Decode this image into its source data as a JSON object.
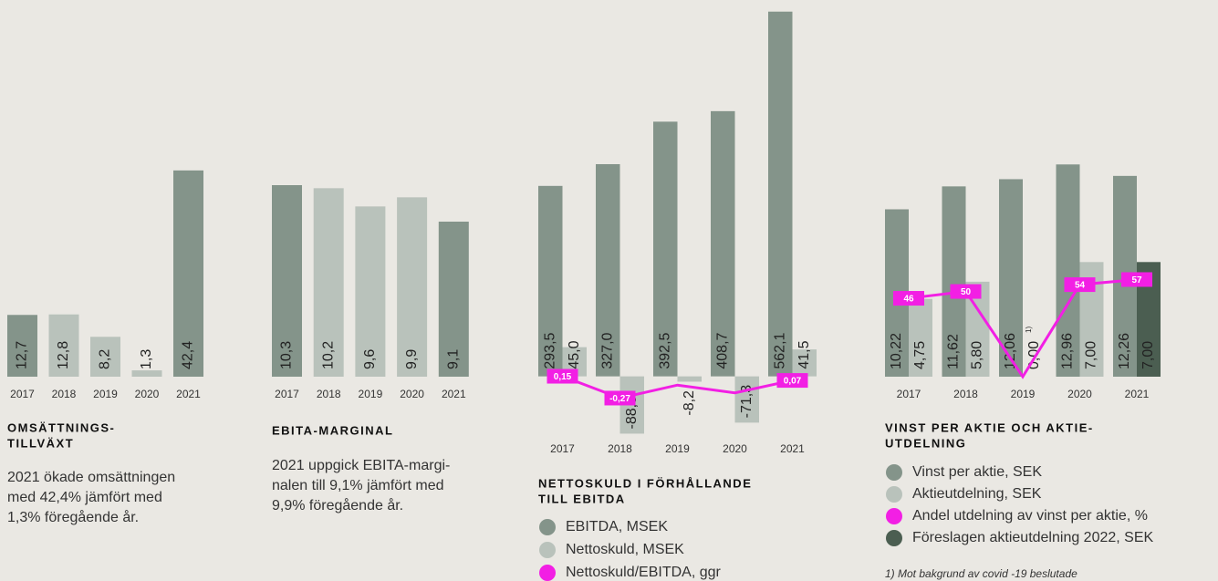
{
  "chart_data": [
    {
      "type": "bar",
      "title": [
        "OMSÄTTNINGS-",
        "TILLVÄXT"
      ],
      "description": [
        "2021 ökade omsättningen",
        "med 42,4% jämfört med",
        "1,3% föregående år."
      ],
      "categories": [
        "2017",
        "2018",
        "2019",
        "2020",
        "2021"
      ],
      "series": [
        {
          "values": [
            12.7,
            12.8,
            8.2,
            1.3,
            42.4
          ],
          "value_labels": [
            "12,7",
            "12,8",
            "8,2",
            "1,3",
            "42,4"
          ],
          "colors": [
            "#84948a",
            "#b9c2bb",
            "#b9c2bb",
            "#b9c2bb",
            "#84948a"
          ]
        }
      ],
      "ylim": [
        0,
        75
      ]
    },
    {
      "type": "bar",
      "title": [
        "EBITA-MARGINAL"
      ],
      "description": [
        "2021 uppgick EBITA-margi-",
        "nalen till 9,1% jämfört med",
        "9,9% föregående år."
      ],
      "categories": [
        "2017",
        "2018",
        "2019",
        "2020",
        "2021"
      ],
      "series": [
        {
          "values": [
            10.3,
            10.2,
            9.6,
            9.9,
            9.1
          ],
          "value_labels": [
            "10,3",
            "10,2",
            "9,6",
            "9,9",
            "9,1"
          ],
          "colors": [
            "#84948a",
            "#b9c2bb",
            "#b9c2bb",
            "#b9c2bb",
            "#84948a"
          ]
        }
      ],
      "ylim": [
        4,
        16
      ]
    },
    {
      "type": "combo",
      "title": [
        "NETTOSKULD I FÖRHÅLLANDE",
        "TILL EBITDA"
      ],
      "categories": [
        "2017",
        "2018",
        "2019",
        "2020",
        "2021"
      ],
      "series": [
        {
          "name": "EBITDA, MSEK",
          "color": "#84948a",
          "values": [
            293.5,
            327.0,
            392.5,
            408.7,
            562.1
          ],
          "value_labels": [
            "293,5",
            "327,0",
            "392,5",
            "408,7",
            "562,1"
          ]
        },
        {
          "name": "Nettoskuld, MSEK",
          "color": "#b9c2bb",
          "values": [
            45.0,
            -88.3,
            -8.2,
            -71.3,
            41.5
          ],
          "value_labels": [
            "45,0",
            "-88,3",
            "-8,2",
            "-71,3",
            "41,5"
          ]
        },
        {
          "name": "Nettoskuld/EBITDA, ggr",
          "color": "#f21fe4",
          "kind": "line",
          "axis": "y2",
          "values": [
            0.15,
            -0.27,
            -0.02,
            -0.17,
            0.07
          ],
          "value_labels": [
            "0,15",
            "-0,27",
            null,
            null,
            "0,07"
          ]
        }
      ],
      "ylim": [
        -120,
        580
      ],
      "y2lim": [
        -1.35,
        7.39
      ]
    },
    {
      "type": "combo",
      "title": [
        "VINST PER AKTIE OCH AKTIE-",
        "UTDELNING"
      ],
      "footnote": "1) Mot bakgrund av covid -19 beslutade",
      "footnote_mark": "1)",
      "categories": [
        "2017",
        "2018",
        "2019",
        "2020",
        "2021"
      ],
      "series": [
        {
          "name": "Vinst per aktie, SEK",
          "color": "#84948a",
          "values": [
            10.22,
            11.62,
            12.06,
            12.96,
            12.26
          ],
          "value_labels": [
            "10,22",
            "11,62",
            "12,06",
            "12,96",
            "12,26"
          ]
        },
        {
          "name": "Aktieutdelning, SEK",
          "color": "#b9c2bb",
          "values": [
            4.75,
            5.8,
            0.0,
            7.0,
            null
          ],
          "value_labels": [
            "4,75",
            "5,80",
            "0,00",
            "7,00",
            null
          ]
        },
        {
          "name": "Andel utdelning av vinst per aktie, %",
          "color": "#f21fe4",
          "kind": "line",
          "axis": "y2",
          "values": [
            46,
            50,
            0,
            54,
            57
          ],
          "value_labels": [
            "46",
            "50",
            null,
            "54",
            "57"
          ]
        },
        {
          "name": "Föreslagen aktieutdelning 2022, SEK",
          "color": "#4b5e51",
          "values": [
            null,
            null,
            null,
            null,
            7.0
          ],
          "value_labels": [
            null,
            null,
            null,
            null,
            "7,00"
          ]
        }
      ],
      "ylim": [
        0,
        23
      ],
      "y2lim": [
        0,
        221
      ]
    }
  ]
}
